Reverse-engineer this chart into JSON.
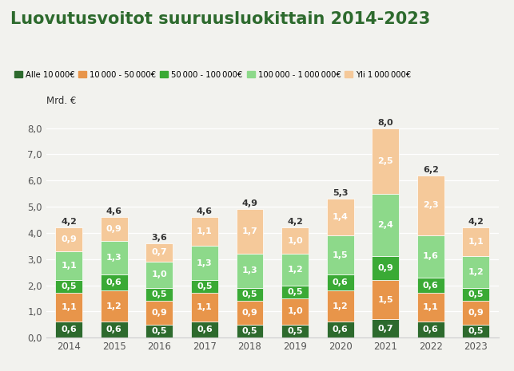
{
  "title": "Luovutusvoitot suuruusluokittain 2014-2023",
  "ylabel": "Mrd. €",
  "years": [
    2014,
    2015,
    2016,
    2017,
    2018,
    2019,
    2020,
    2021,
    2022,
    2023
  ],
  "categories": [
    "Alle 10 000€",
    "10 000 - 50 000€",
    "50 000 - 100 000€",
    "100 000 - 1 000 000€",
    "Yli 1 000 000€"
  ],
  "colors": [
    "#2d6a2d",
    "#e8954a",
    "#3aaa35",
    "#8dd98a",
    "#f5c99a"
  ],
  "data": {
    "Alle 10 000": [
      0.6,
      0.6,
      0.5,
      0.6,
      0.5,
      0.5,
      0.6,
      0.7,
      0.6,
      0.5
    ],
    "10 000 - 50 000": [
      1.1,
      1.2,
      0.9,
      1.1,
      0.9,
      1.0,
      1.2,
      1.5,
      1.1,
      0.9
    ],
    "50 000 - 100 000": [
      0.5,
      0.6,
      0.5,
      0.5,
      0.5,
      0.5,
      0.6,
      0.9,
      0.6,
      0.5
    ],
    "100 000 - 1 000 000": [
      1.1,
      1.3,
      1.0,
      1.3,
      1.3,
      1.2,
      1.5,
      2.4,
      1.6,
      1.2
    ],
    "Yli 1 000 000": [
      0.9,
      0.9,
      0.7,
      1.1,
      1.7,
      1.0,
      1.4,
      2.5,
      2.3,
      1.1
    ]
  },
  "totals": [
    4.2,
    4.6,
    3.6,
    4.6,
    4.9,
    4.2,
    5.3,
    8.0,
    6.2,
    4.2
  ],
  "ylim": [
    0,
    8.5
  ],
  "yticks": [
    0.0,
    1.0,
    2.0,
    3.0,
    4.0,
    5.0,
    6.0,
    7.0,
    8.0
  ],
  "background_color": "#f2f2ee",
  "title_color": "#2d6a2d",
  "title_fontsize": 15,
  "label_fontsize": 8,
  "total_fontsize": 8,
  "bar_width": 0.6
}
